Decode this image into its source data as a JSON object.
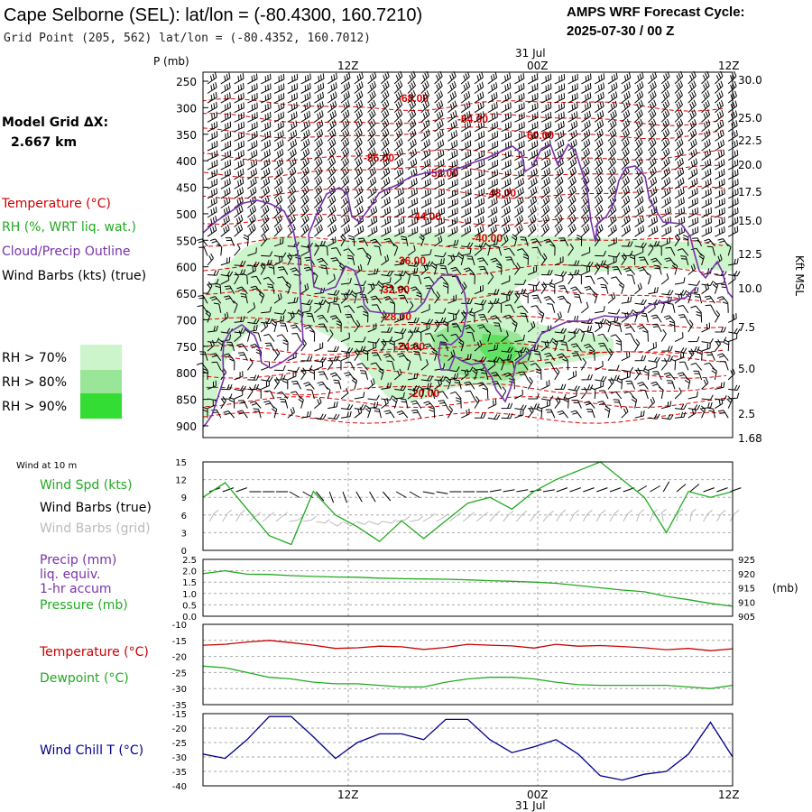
{
  "header": {
    "title": "Cape Selborne (SEL):  lat/lon = (-80.4300, 160.7210)",
    "subtitle": "Grid Point (205, 562) lat/lon = (-80.4352, 160.7012)",
    "cycle_line1": "AMPS WRF Forecast Cycle:",
    "cycle_line2": "2025-07-30 / 00  Z",
    "date_top": "31 Jul",
    "date_bottom": "31 Jul",
    "time_ticks": [
      "12Z",
      "00Z",
      "12Z"
    ]
  },
  "legend": {
    "model_grid_label": "Model Grid ΔX:",
    "model_grid_value": "2.667 km",
    "temperature": "Temperature (°C)",
    "rh": "RH (%, WRT liq. wat.)",
    "cloud": "Cloud/Precip Outline",
    "wind": "Wind Barbs (kts) (true)",
    "rh70": "RH > 70%",
    "rh80": "RH > 80%",
    "rh90": "RH > 90%",
    "colors": {
      "temperature": "#cc0000",
      "rh": "#22aa22",
      "cloud": "#7733aa",
      "rh70": "#ccf5cc",
      "rh80": "#99e699",
      "rh90": "#33dd33"
    }
  },
  "panels": {
    "sounding": {
      "p_label": "P (mb)",
      "right_label": "Kft MSL",
      "pressure_ticks": [
        250,
        300,
        350,
        400,
        450,
        500,
        550,
        600,
        650,
        700,
        750,
        800,
        850,
        900
      ],
      "height_ticks": [
        "30.0",
        "25.0",
        "22.5",
        "20.0",
        "17.5",
        "15.0",
        "12.5",
        "10.0",
        "7.5",
        "5.0",
        "2.5",
        "1.68"
      ]
    },
    "wind10": {
      "title": "Wind at 10 m",
      "label_spd": "Wind Spd (kts)",
      "label_true": "Wind Barbs (true)",
      "label_grid": "Wind Barbs (grid)",
      "y_ticks": [
        0,
        3,
        6,
        9,
        12,
        15
      ]
    },
    "precip": {
      "label1": "Precip (mm)",
      "label2": "liq. equiv.",
      "label3": "1-hr accum",
      "label4": "Pressure (mb)",
      "right_unit": "(mb)",
      "y_ticks": [
        "0.0",
        "0.5",
        "1.0",
        "1.5",
        "2.0",
        "2.5"
      ],
      "right_ticks": [
        905,
        910,
        915,
        920,
        925
      ]
    },
    "temp": {
      "label_t": "Temperature (°C)",
      "label_td": "Dewpoint (°C)",
      "y_ticks": [
        -35,
        -30,
        -25,
        -20,
        -15,
        -10
      ]
    },
    "chill": {
      "label": "Wind Chill T (°C)",
      "y_ticks": [
        -40,
        -35,
        -30,
        -25,
        -20,
        -15
      ]
    }
  },
  "chart_data": {
    "type": "line",
    "forecast_hours": [
      0,
      2,
      4,
      6,
      8,
      10,
      12,
      14,
      16,
      18,
      20,
      22,
      24,
      26,
      28,
      30,
      32,
      34,
      36,
      38,
      40,
      42,
      44,
      46,
      48
    ],
    "sounding_temperature_contours": [
      {
        "value": "-68.00",
        "level_mb": 295
      },
      {
        "value": "-64.00",
        "level_mb": 322
      },
      {
        "value": "-60.00",
        "level_mb": 348
      },
      {
        "value": "-56.00",
        "level_mb": 390
      },
      {
        "value": "-52.00",
        "level_mb": 420
      },
      {
        "value": "-48.00",
        "level_mb": 460
      },
      {
        "value": "-44.00",
        "level_mb": 510
      },
      {
        "value": "-40.00",
        "level_mb": 555
      },
      {
        "value": "-36.00",
        "level_mb": 605
      },
      {
        "value": "-32.00",
        "level_mb": 655
      },
      {
        "value": "-28.00",
        "level_mb": 705
      },
      {
        "value": "-24.00",
        "level_mb": 755
      },
      {
        "value": "-20.00",
        "level_mb": 830
      }
    ],
    "series": [
      {
        "name": "Wind Spd (kts)",
        "values": [
          9,
          11.5,
          7,
          2.5,
          1,
          10,
          6,
          4,
          1.5,
          5,
          2,
          5,
          8,
          9,
          7,
          10,
          12,
          13.5,
          15,
          12,
          9,
          3,
          10,
          9,
          10
        ]
      },
      {
        "name": "Pressure (mb)",
        "values": [
          920,
          921,
          919.8,
          919.7,
          919.3,
          919,
          918.8,
          918.7,
          918.4,
          918.2,
          918.1,
          918,
          917.8,
          917.5,
          917.3,
          917,
          916.6,
          915.8,
          915,
          914.2,
          913.6,
          912,
          910.8,
          909.5,
          908.5
        ]
      },
      {
        "name": "Temperature (°C)",
        "values": [
          -16.5,
          -16.2,
          -15.5,
          -15,
          -15.7,
          -16.5,
          -17.5,
          -17.3,
          -16.8,
          -17,
          -17.8,
          -17.2,
          -16.2,
          -16.5,
          -16.7,
          -17.4,
          -16.2,
          -16.8,
          -16.6,
          -16.9,
          -17.3,
          -17.9,
          -17.5,
          -18.2,
          -17.6
        ]
      },
      {
        "name": "Dewpoint (°C)",
        "values": [
          -23,
          -23.5,
          -25,
          -26.5,
          -27,
          -28,
          -28.5,
          -28.5,
          -29,
          -29.5,
          -29.5,
          -28,
          -27,
          -26.5,
          -26.5,
          -27,
          -28,
          -28.8,
          -29,
          -29,
          -29,
          -29,
          -29.5,
          -30,
          -29
        ]
      },
      {
        "name": "Wind Chill T (°C)",
        "values": [
          -29,
          -30.5,
          -24,
          -16,
          -16,
          -23,
          -30.5,
          -25,
          -22,
          -22,
          -24,
          -17,
          -17,
          -24,
          -28.5,
          -26.5,
          -24,
          -29,
          -36.5,
          -38,
          -36,
          -35,
          -29,
          -18,
          -30
        ]
      }
    ],
    "wind10_barbs_true_dir_deg": [
      250,
      250,
      270,
      270,
      300,
      320,
      340,
      330,
      320,
      300,
      280,
      270,
      270,
      260,
      260,
      260,
      250,
      250,
      250,
      250,
      240,
      210,
      230,
      250,
      250
    ],
    "wind10_barbs_grid_dir_deg": [
      90,
      90,
      110,
      110,
      140,
      160,
      180,
      170,
      160,
      140,
      120,
      110,
      110,
      100,
      100,
      100,
      90,
      90,
      90,
      90,
      80,
      50,
      70,
      90,
      90
    ]
  }
}
